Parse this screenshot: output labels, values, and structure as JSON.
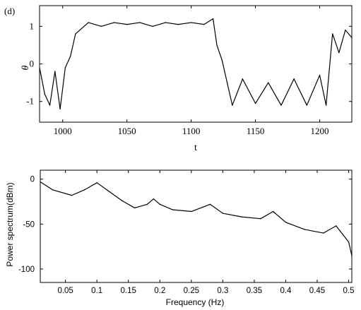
{
  "panel_label": "(d)",
  "chart_data": [
    {
      "type": "line",
      "title": "",
      "xlabel": "t",
      "ylabel": "θ",
      "xlim": [
        982,
        1225
      ],
      "ylim": [
        -1.55,
        1.55
      ],
      "x_ticks": [
        1000,
        1050,
        1100,
        1150,
        1200
      ],
      "x_tick_labels": [
        "1000",
        "1050",
        "1100",
        "1150",
        "1200"
      ],
      "y_ticks": [
        1,
        0,
        -1
      ],
      "y_tick_labels": [
        "1",
        "0",
        "-1"
      ],
      "grid": false,
      "color": "#000000",
      "x": [
        982,
        986,
        990,
        994,
        998,
        1002,
        1006,
        1010,
        1020,
        1030,
        1040,
        1050,
        1060,
        1070,
        1080,
        1090,
        1100,
        1110,
        1117,
        1120,
        1124,
        1128,
        1132,
        1140,
        1150,
        1160,
        1170,
        1180,
        1190,
        1200,
        1205,
        1210,
        1215,
        1220,
        1225
      ],
      "y": [
        -0.1,
        -0.8,
        -1.1,
        -0.2,
        -1.2,
        -0.1,
        0.2,
        0.8,
        1.1,
        1.0,
        1.1,
        1.05,
        1.1,
        1.0,
        1.1,
        1.05,
        1.1,
        1.05,
        1.2,
        0.5,
        0.1,
        -0.5,
        -1.1,
        -0.4,
        -1.05,
        -0.5,
        -1.1,
        -0.4,
        -1.1,
        -0.3,
        -1.1,
        0.8,
        0.3,
        0.9,
        0.7
      ]
    },
    {
      "type": "line",
      "title": "",
      "xlabel": "Frequency (Hz)",
      "ylabel": "Power spectrum(dBm)",
      "xlim": [
        0.01,
        0.505
      ],
      "ylim": [
        -115,
        10
      ],
      "x_ticks": [
        0.05,
        0.1,
        0.15,
        0.2,
        0.25,
        0.3,
        0.35,
        0.4,
        0.45,
        0.5
      ],
      "x_tick_labels": [
        "0.05",
        "0.1",
        "0.15",
        "0.2",
        "0.25",
        "0.3",
        "0.35",
        "0.4",
        "0.45",
        "0.5"
      ],
      "y_ticks": [
        0,
        -50,
        -100
      ],
      "y_tick_labels": [
        "0",
        "-50",
        "-100"
      ],
      "grid": false,
      "color": "#000000",
      "x": [
        0.01,
        0.03,
        0.06,
        0.08,
        0.1,
        0.12,
        0.14,
        0.16,
        0.18,
        0.19,
        0.2,
        0.22,
        0.25,
        0.28,
        0.3,
        0.33,
        0.36,
        0.38,
        0.4,
        0.43,
        0.46,
        0.48,
        0.5,
        0.505
      ],
      "y": [
        -3,
        -12,
        -18,
        -12,
        -4,
        -14,
        -24,
        -32,
        -28,
        -22,
        -28,
        -34,
        -36,
        -28,
        -38,
        -42,
        -44,
        -36,
        -48,
        -56,
        -60,
        -52,
        -70,
        -85
      ]
    }
  ]
}
